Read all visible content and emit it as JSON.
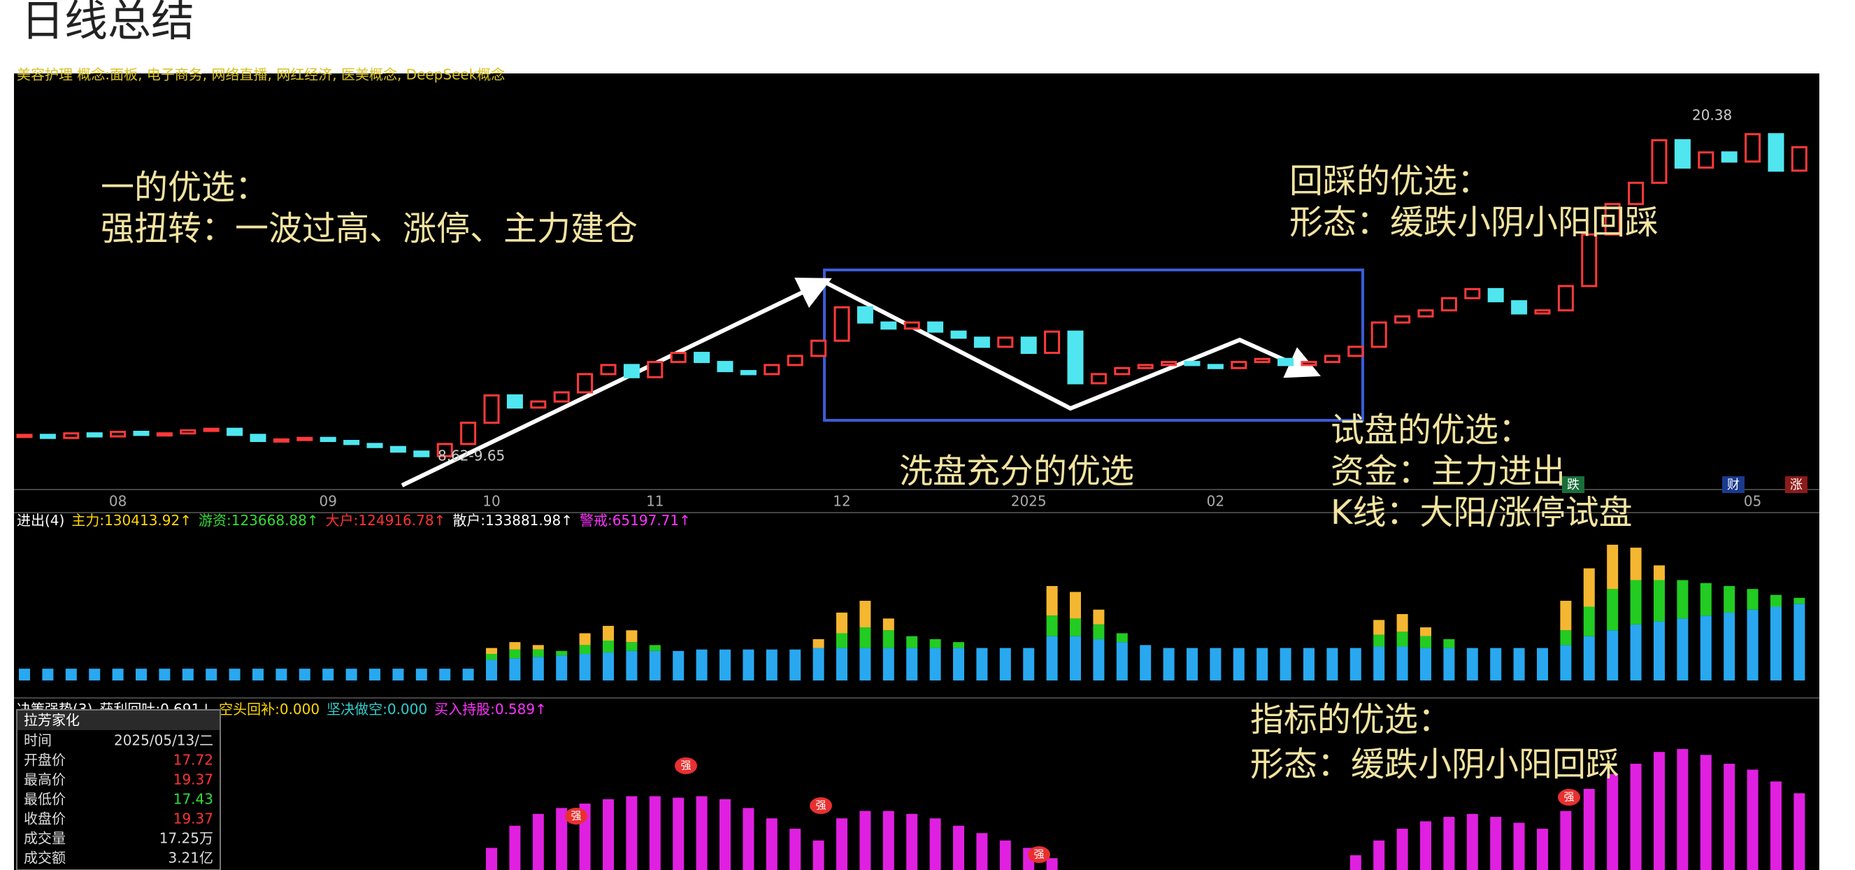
{
  "title": "日线总结",
  "info_strip": "美容护理 概念:面板, 电子商务, 网络直播, 网红经济, 医美概念, DeepSeek概念",
  "annotations": [
    "一的优选：",
    "强扭转：一波过高、涨停、主力建仓",
    "回踩的优选：",
    "形态：缓跌小阴小阳回踩",
    "洗盘充分的优选",
    "试盘的优选：",
    "资金：主力进出",
    "K线：大阳/涨停试盘",
    "指标的优选：",
    "形态：缓跌小阴小阳回踩"
  ],
  "buttons": [
    "跌",
    "财",
    "涨"
  ],
  "info_box": {
    "title": "拉芳家化",
    "rows": [
      [
        "时间",
        "2025/05/13/二"
      ],
      [
        "开盘价",
        17.72
      ],
      [
        "最高价",
        19.37
      ],
      [
        "最低价",
        17.43
      ],
      [
        "收盘价",
        19.37
      ],
      [
        "成交量",
        "17.25万"
      ],
      [
        "成交额",
        "3.21亿"
      ]
    ]
  },
  "chart_data": [
    {
      "type": "candlestick",
      "up_color": "#ff3a3a",
      "down_color": "#4fe6f0",
      "price_labels": [
        "20.38",
        "8.62-9.65"
      ],
      "categories": [
        null,
        null,
        null,
        null,
        "08",
        null,
        null,
        null,
        null,
        null,
        null,
        null,
        null,
        "09",
        null,
        null,
        null,
        null,
        null,
        null,
        "10",
        null,
        null,
        null,
        null,
        null,
        null,
        "11",
        null,
        null,
        null,
        null,
        null,
        null,
        null,
        "12",
        null,
        null,
        null,
        null,
        null,
        null,
        null,
        "2025",
        null,
        null,
        null,
        null,
        null,
        null,
        null,
        "02",
        null,
        null,
        null,
        null,
        null,
        null,
        null,
        null,
        null,
        null,
        null,
        null,
        null,
        null,
        null,
        null,
        null,
        null,
        null,
        null,
        null,
        null,
        "05",
        null,
        null
      ],
      "close": [
        9.9,
        9.8,
        9.95,
        9.85,
        10.0,
        9.9,
        9.95,
        10.05,
        10.1,
        9.9,
        9.7,
        9.75,
        9.8,
        9.7,
        9.6,
        9.5,
        9.35,
        9.2,
        9.6,
        10.3,
        11.2,
        10.8,
        11.0,
        11.3,
        11.9,
        12.2,
        11.8,
        12.3,
        12.6,
        12.3,
        12.0,
        11.9,
        12.2,
        12.5,
        13.0,
        14.1,
        13.6,
        13.4,
        13.6,
        13.3,
        13.1,
        12.8,
        13.1,
        12.6,
        13.3,
        11.6,
        11.9,
        12.1,
        12.2,
        12.3,
        12.2,
        12.1,
        12.3,
        12.4,
        12.2,
        12.3,
        12.5,
        12.8,
        13.6,
        13.8,
        14.0,
        14.4,
        14.7,
        14.3,
        13.9,
        14.0,
        14.8,
        16.5,
        17.5,
        18.2,
        19.6,
        18.7,
        19.2,
        18.9,
        19.8,
        18.6,
        19.37
      ],
      "ylim": [
        8.1,
        21.8
      ]
    },
    {
      "type": "stacked-bar",
      "ylim": [
        0,
        100
      ],
      "header": [
        {
          "text": "进出(4)",
          "color": "#ffffff"
        },
        {
          "text": "主力:130413.92↑",
          "color": "#ffd700"
        },
        {
          "text": "游资:123668.88↑",
          "color": "#33dd33"
        },
        {
          "text": "大户:124916.78↑",
          "color": "#ff3333"
        },
        {
          "text": "散户:133881.98↑",
          "color": "#ffffff"
        },
        {
          "text": "警戒:65197.71↑",
          "color": "#ff33ff"
        }
      ],
      "series": [
        {
          "color": "#29a8f0",
          "values": [
            8,
            8,
            8,
            8,
            8,
            8,
            8,
            8,
            8,
            8,
            8,
            8,
            8,
            8,
            8,
            8,
            8,
            8,
            8,
            8,
            14,
            15,
            16,
            17,
            18,
            19,
            20,
            20,
            20,
            21,
            21,
            21,
            21,
            21,
            22,
            22,
            22,
            22,
            22,
            22,
            22,
            22,
            22,
            22,
            30,
            30,
            28,
            26,
            24,
            22,
            22,
            22,
            22,
            22,
            22,
            22,
            22,
            22,
            23,
            23,
            22,
            22,
            22,
            22,
            22,
            22,
            24,
            30,
            34,
            38,
            40,
            42,
            44,
            46,
            48,
            50,
            52
          ]
        },
        {
          "color": "#22cc22",
          "values": [
            0,
            0,
            0,
            0,
            0,
            0,
            0,
            0,
            0,
            0,
            0,
            0,
            0,
            0,
            0,
            0,
            0,
            0,
            0,
            0,
            4,
            6,
            5,
            3,
            6,
            8,
            6,
            4,
            0,
            0,
            0,
            0,
            0,
            0,
            0,
            10,
            14,
            12,
            8,
            6,
            4,
            0,
            0,
            0,
            14,
            12,
            10,
            6,
            0,
            0,
            0,
            0,
            0,
            0,
            0,
            0,
            0,
            0,
            8,
            10,
            8,
            6,
            0,
            0,
            0,
            0,
            10,
            20,
            28,
            30,
            28,
            26,
            22,
            18,
            14,
            8,
            4
          ]
        },
        {
          "color": "#f5b731",
          "values": [
            0,
            0,
            0,
            0,
            0,
            0,
            0,
            0,
            0,
            0,
            0,
            0,
            0,
            0,
            0,
            0,
            0,
            0,
            0,
            0,
            4,
            5,
            3,
            0,
            8,
            10,
            8,
            0,
            0,
            0,
            0,
            0,
            0,
            0,
            6,
            14,
            18,
            8,
            0,
            0,
            0,
            0,
            0,
            0,
            20,
            18,
            10,
            0,
            0,
            0,
            0,
            0,
            0,
            0,
            0,
            0,
            0,
            0,
            10,
            12,
            6,
            0,
            0,
            0,
            0,
            0,
            20,
            26,
            30,
            22,
            10,
            0,
            0,
            0,
            0,
            0,
            0
          ]
        }
      ]
    },
    {
      "type": "bar",
      "ylim": [
        0,
        100
      ],
      "signals": [
        "强",
        "强",
        "强",
        "强",
        "强"
      ],
      "header": [
        {
          "text": "决策强势(3)",
          "color": "#ffffff"
        },
        {
          "text": "获利回吐:0.691↓",
          "color": "#ffffff"
        },
        {
          "text": "空头回补:0.000",
          "color": "#ffd700"
        },
        {
          "text": "坚决做空:0.000",
          "color": "#33cccc"
        },
        {
          "text": "买入持股:0.589↑",
          "color": "#ff33ff"
        }
      ],
      "series": [
        {
          "color": "#e020e0",
          "values": [
            0,
            0,
            0,
            0,
            0,
            0,
            0,
            0,
            0,
            0,
            0,
            0,
            0,
            0,
            0,
            0,
            0,
            0,
            0,
            0,
            15,
            30,
            38,
            42,
            45,
            48,
            50,
            50,
            49,
            50,
            48,
            42,
            35,
            28,
            20,
            35,
            40,
            40,
            38,
            35,
            30,
            25,
            20,
            15,
            8,
            0,
            0,
            0,
            0,
            0,
            0,
            0,
            0,
            0,
            0,
            0,
            0,
            10,
            20,
            28,
            33,
            36,
            38,
            36,
            32,
            28,
            40,
            55,
            65,
            72,
            80,
            82,
            78,
            72,
            68,
            60,
            52
          ]
        }
      ]
    }
  ]
}
